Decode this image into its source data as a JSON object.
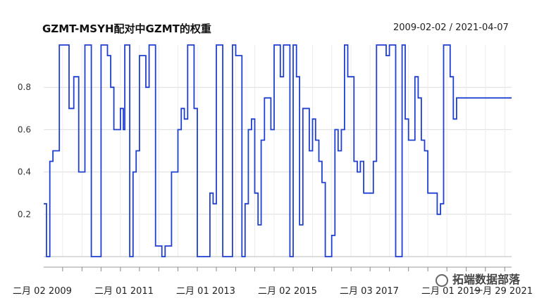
{
  "chart_data": {
    "type": "line",
    "title": "GZMT-MSYH配对中GZMT的权重",
    "date_range": "2009-02-02 / 2021-04-07",
    "y_ticks": [
      "0.2",
      "0.4",
      "0.6",
      "0.8"
    ],
    "x_ticks": [
      "二月 02 2009",
      "二月 01 2011",
      "二月 01 2013",
      "二月 02 2015",
      "二月 03 2017",
      "二月 01 2019",
      "一月 29 2021"
    ],
    "ylim": [
      0,
      1
    ],
    "x_range": [
      "2009-02-02",
      "2021-04-07"
    ],
    "series": [
      {
        "values_x": [
          "2009-02-02",
          "2009-03-01",
          "2009-04-01",
          "2009-05-01",
          "2009-07-01",
          "2009-10-01",
          "2009-11-15",
          "2010-01-01",
          "2010-03-01",
          "2010-05-01",
          "2010-06-01",
          "2010-08-01",
          "2010-10-01",
          "2010-11-01",
          "2010-12-01",
          "2011-02-01",
          "2011-03-01",
          "2011-03-15",
          "2011-05-01",
          "2011-06-01",
          "2011-07-01",
          "2011-08-01",
          "2011-10-01",
          "2011-11-01",
          "2012-01-01",
          "2012-03-01",
          "2012-04-01",
          "2012-06-01",
          "2012-08-01",
          "2012-09-01",
          "2012-10-01",
          "2012-11-01",
          "2013-01-01",
          "2013-02-01",
          "2013-03-01",
          "2013-04-01",
          "2013-05-01",
          "2013-06-01",
          "2013-07-01",
          "2013-08-01",
          "2013-10-01",
          "2013-11-01",
          "2014-01-01",
          "2014-02-01",
          "2014-04-01",
          "2014-05-01",
          "2014-06-01",
          "2014-07-01",
          "2014-08-01",
          "2014-09-01",
          "2014-10-01",
          "2014-11-01",
          "2015-01-01",
          "2015-02-01",
          "2015-04-01",
          "2015-05-01",
          "2015-07-01",
          "2015-08-01",
          "2015-09-01",
          "2015-10-01",
          "2015-11-01",
          "2016-01-01",
          "2016-02-01",
          "2016-03-01",
          "2016-04-01",
          "2016-05-01",
          "2016-06-01",
          "2016-08-01",
          "2016-09-01",
          "2016-10-01",
          "2016-11-01",
          "2016-12-01",
          "2017-01-01",
          "2017-02-01",
          "2017-03-01",
          "2017-04-01",
          "2017-05-01",
          "2017-06-01",
          "2017-07-01",
          "2017-09-01",
          "2017-10-01",
          "2017-11-01",
          "2018-01-01",
          "2018-02-01",
          "2018-04-01",
          "2018-05-01",
          "2018-06-01",
          "2018-07-01",
          "2018-08-01",
          "2018-10-01",
          "2018-11-01",
          "2018-12-01",
          "2019-01-01",
          "2019-02-01",
          "2019-04-01",
          "2019-05-01",
          "2019-06-01",
          "2019-07-01",
          "2019-08-01",
          "2019-09-01",
          "2019-10-01",
          "2019-11-01",
          "2019-12-01",
          "2020-01-01",
          "2020-03-01",
          "2020-04-01",
          "2020-05-01",
          "2020-06-01",
          "2020-07-01",
          "2020-08-01",
          "2020-09-01",
          "2020-10-01",
          "2020-11-01",
          "2021-01-01",
          "2021-02-01",
          "2021-03-01",
          "2021-04-07"
        ],
        "values_y": [
          0.25,
          0.0,
          0.45,
          0.5,
          1.0,
          0.7,
          0.85,
          0.4,
          1.0,
          0.0,
          0.0,
          1.0,
          0.95,
          0.8,
          0.6,
          0.7,
          0.6,
          1.0,
          0.0,
          0.4,
          0.5,
          0.95,
          0.8,
          1.0,
          0.05,
          0.0,
          0.05,
          0.4,
          0.6,
          0.7,
          0.65,
          1.0,
          0.7,
          0.0,
          0.0,
          0.0,
          0.0,
          0.3,
          0.25,
          1.0,
          0.0,
          0.0,
          1.0,
          0.95,
          0.0,
          0.25,
          0.6,
          0.65,
          0.3,
          0.15,
          0.55,
          0.75,
          0.6,
          1.0,
          0.85,
          1.0,
          0.0,
          1.0,
          0.85,
          0.15,
          0.7,
          0.5,
          0.65,
          0.55,
          0.45,
          0.35,
          0.0,
          0.1,
          0.6,
          0.5,
          0.6,
          1.0,
          0.85,
          0.85,
          0.45,
          0.4,
          0.45,
          0.3,
          0.3,
          0.45,
          1.0,
          1.0,
          0.95,
          1.0,
          0.0,
          0.0,
          1.0,
          0.65,
          0.55,
          0.85,
          0.75,
          0.55,
          0.5,
          0.3,
          0.3,
          0.2,
          0.25,
          1.0,
          1.0,
          0.85,
          0.65,
          0.75,
          0.75,
          0.75,
          0.75,
          0.75,
          0.75,
          0.75,
          0.75,
          0.75,
          0.75,
          0.75,
          0.75,
          0.75,
          0.75,
          0.75,
          0.75
        ]
      }
    ],
    "grid": true,
    "line_color": "#1f3fd1"
  },
  "watermark": "拓端数据部落"
}
